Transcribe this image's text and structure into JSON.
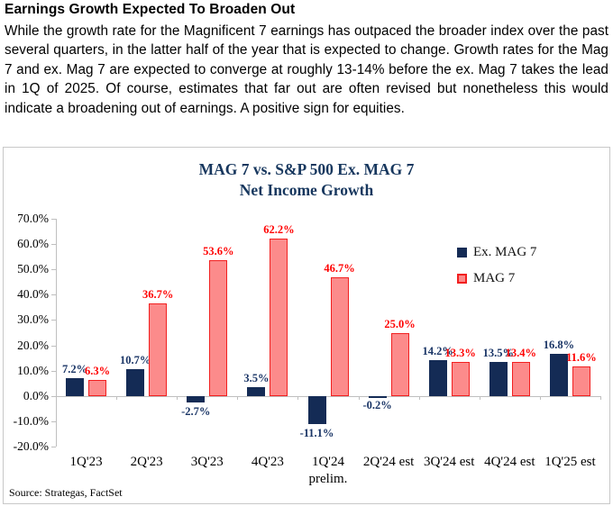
{
  "header": {
    "title": "Earnings Growth Expected To Broaden Out",
    "paragraph": "While the growth rate for the Magnificent 7 earnings has outpaced the broader index over the past several quarters, in the latter half of the year that is expected to change. Growth rates for the Mag 7 and ex. Mag 7 are expected to converge at roughly 13-14% before the ex. Mag 7 takes the lead in 1Q of 2025. Of course, estimates that far out are often revised but nonetheless this would indicate a broadening out of earnings. A positive sign for equities."
  },
  "chart": {
    "source": "Source: Strategas, FactSet"
  },
  "chart_data": {
    "type": "bar",
    "title": "MAG 7 vs. S&P 500 Ex. MAG 7",
    "subtitle": "Net Income Growth",
    "categories": [
      "1Q'23",
      "2Q'23",
      "3Q'23",
      "4Q'23",
      "1Q'24",
      "2Q'24 est",
      "3Q'24 est",
      "4Q'24 est",
      "1Q'25 est"
    ],
    "category_sublabels": [
      "",
      "",
      "",
      "",
      "prelim.",
      "",
      "",
      "",
      ""
    ],
    "series": [
      {
        "name": "Ex. MAG 7",
        "values": [
          7.2,
          10.7,
          -2.7,
          3.5,
          -11.1,
          -0.2,
          14.2,
          13.5,
          16.8
        ],
        "color": "#142B55",
        "border_color": "#142B55",
        "label_color": "#1A3566"
      },
      {
        "name": "MAG 7",
        "values": [
          6.3,
          36.7,
          53.6,
          62.2,
          46.7,
          25.0,
          13.3,
          13.4,
          11.6
        ],
        "color": "#FC8B8B",
        "border_color": "#F22020",
        "label_color": "#FF0000"
      }
    ],
    "ylim": [
      -20,
      70
    ],
    "ytick_step": 10,
    "ytick_labels": [
      "70.0%",
      "60.0%",
      "50.0%",
      "40.0%",
      "30.0%",
      "20.0%",
      "10.0%",
      "0.0%",
      "-10.0%",
      "-20.0%"
    ],
    "value_label_format": "one_decimal_percent",
    "grid": false,
    "legend_position": "inside-upper-right",
    "title_color": "#17375E",
    "axis_color": "#BFBFBF"
  }
}
